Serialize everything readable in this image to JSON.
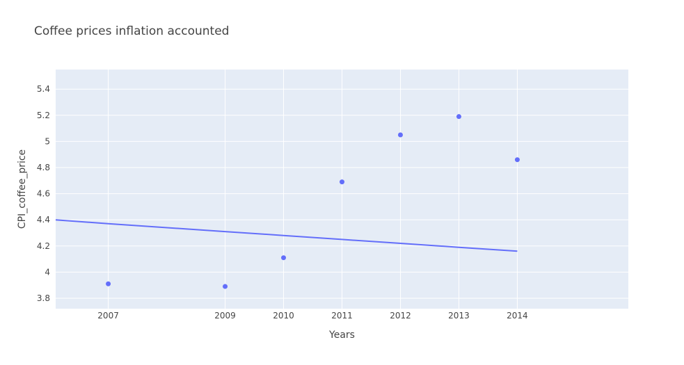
{
  "chart_data": {
    "type": "scatter",
    "title": "Coffee prices inflation accounted",
    "xlabel": "Years",
    "ylabel": "CPI_coffee_price",
    "x_ticks": [
      "2007",
      "2009",
      "2010",
      "2011",
      "2012",
      "2013",
      "2014"
    ],
    "y_ticks": [
      "3.8",
      "4",
      "4.2",
      "4.4",
      "4.6",
      "4.8",
      "5",
      "5.2",
      "5.4"
    ],
    "xlim": [
      2006.1,
      2015.9
    ],
    "ylim": [
      3.72,
      5.55
    ],
    "grid": true,
    "series": [
      {
        "mode": "markers",
        "x": [
          2007,
          2009,
          2010,
          2011,
          2012,
          2013,
          2014
        ],
        "y": [
          3.91,
          3.89,
          4.11,
          4.69,
          5.05,
          5.19,
          4.86
        ]
      },
      {
        "mode": "lines",
        "x": [
          2006.1,
          2007,
          2009,
          2010,
          2011,
          2012,
          2013,
          2014
        ],
        "y": [
          4.4,
          4.37,
          4.31,
          4.28,
          4.25,
          4.22,
          4.19,
          4.16
        ]
      }
    ],
    "colors": {
      "plot_bg": "#e5ecf6",
      "grid": "#ffffff",
      "marker": "#636efa",
      "line": "#636efa"
    }
  }
}
